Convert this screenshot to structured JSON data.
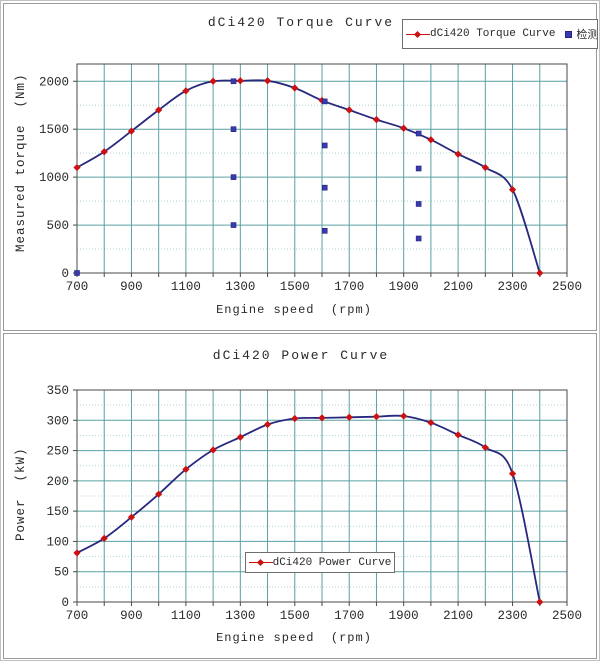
{
  "chart_data": [
    {
      "type": "line",
      "title": "dCi420 Torque Curve",
      "xlabel": "Engine speed  (rpm)",
      "ylabel": "Measured torque  (Nm)",
      "xlim": [
        700,
        2500
      ],
      "ylim": [
        0,
        2180
      ],
      "xticks": [
        700,
        900,
        1100,
        1300,
        1500,
        1700,
        1900,
        2100,
        2300,
        2500
      ],
      "yticks": [
        0,
        500,
        1000,
        1500,
        2000
      ],
      "xgrid_step": 100,
      "ygrid_minor": 250,
      "grid": "on",
      "legend_position": "top-right",
      "colors": {
        "grid_major": "#5aa0a0",
        "grid_minor": "#b0d4d4",
        "frame": "#4a4a4a",
        "line": "#28287e",
        "marker_red": "#cc1111",
        "marker_blue": "#3a3ab0"
      },
      "series": [
        {
          "name": "dCi420 Torque Curve",
          "kind": "line",
          "marker": "diamond",
          "x": [
            700,
            800,
            900,
            1000,
            1100,
            1200,
            1300,
            1400,
            1500,
            1600,
            1700,
            1800,
            1900,
            2000,
            2100,
            2200,
            2300,
            2400
          ],
          "y": [
            1100,
            1265,
            1480,
            1700,
            1900,
            2000,
            2005,
            2005,
            1930,
            1800,
            1700,
            1600,
            1510,
            1390,
            1240,
            1100,
            870,
            0
          ]
        },
        {
          "name": "检测点",
          "kind": "scatter",
          "marker": "square",
          "x": [
            700,
            1275,
            1275,
            1275,
            1275,
            1610,
            1610,
            1610,
            1610,
            1955,
            1955,
            1955,
            1955
          ],
          "y": [
            0,
            500,
            1000,
            1500,
            2000,
            440,
            890,
            1330,
            1790,
            360,
            720,
            1090,
            1455
          ]
        }
      ]
    },
    {
      "type": "line",
      "title": "dCi420 Power Curve",
      "xlabel": "Engine speed  (rpm)",
      "ylabel": "Power  (kW)",
      "xlim": [
        700,
        2500
      ],
      "ylim": [
        0,
        350
      ],
      "xticks": [
        700,
        900,
        1100,
        1300,
        1500,
        1700,
        1900,
        2100,
        2300,
        2500
      ],
      "yticks": [
        0,
        50,
        100,
        150,
        200,
        250,
        300,
        350
      ],
      "xgrid_step": 100,
      "ygrid_minor": 25,
      "grid": "on",
      "legend_position": "bottom-center",
      "colors": {
        "grid_major": "#5aa0a0",
        "grid_minor": "#b0d4d4",
        "frame": "#4a4a4a",
        "line": "#28287e",
        "marker_red": "#cc1111"
      },
      "series": [
        {
          "name": "dCi420 Power Curve",
          "kind": "line",
          "marker": "diamond",
          "x": [
            700,
            800,
            900,
            1000,
            1100,
            1200,
            1300,
            1400,
            1500,
            1600,
            1700,
            1800,
            1900,
            2000,
            2100,
            2200,
            2300,
            2400
          ],
          "y": [
            81,
            105,
            140,
            178,
            219,
            251,
            272,
            293,
            303,
            304,
            305,
            306,
            307,
            296,
            276,
            255,
            212,
            0
          ]
        }
      ]
    }
  ]
}
